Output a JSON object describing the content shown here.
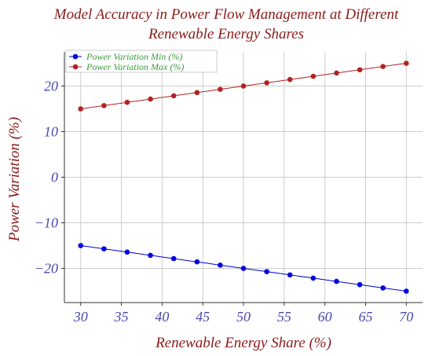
{
  "chart_data": {
    "type": "line",
    "title_lines": [
      "Model Accuracy in Power Flow Management at Different",
      "Renewable Energy Shares"
    ],
    "xlabel": "Renewable Energy Share (%)",
    "ylabel": "Power Variation (%)",
    "x": [
      30,
      32.86,
      35.71,
      38.57,
      41.43,
      44.29,
      47.14,
      50,
      52.86,
      55.71,
      58.57,
      61.43,
      64.29,
      67.14,
      70
    ],
    "series": [
      {
        "name": "Power Variation Min (%)",
        "color": "#0000dd",
        "values": [
          -15,
          -15.71,
          -16.43,
          -17.14,
          -17.86,
          -18.57,
          -19.29,
          -20,
          -20.71,
          -21.43,
          -22.14,
          -22.86,
          -23.57,
          -24.29,
          -25
        ]
      },
      {
        "name": "Power Variation Max (%)",
        "color": "#b22222",
        "values": [
          15,
          15.71,
          16.43,
          17.14,
          17.86,
          18.57,
          19.29,
          20,
          20.71,
          21.43,
          22.14,
          22.86,
          23.57,
          24.29,
          25
        ]
      }
    ],
    "xlim": [
      28,
      72
    ],
    "ylim": [
      -27.5,
      27.5
    ],
    "xticks": [
      30,
      35,
      40,
      45,
      50,
      55,
      60,
      65,
      70
    ],
    "yticks": [
      -20,
      -10,
      0,
      10,
      20
    ],
    "ytick_labels": [
      "−20",
      "−10",
      "0",
      "10",
      "20"
    ],
    "grid": true,
    "legend_position": "top-left",
    "colors": {
      "title": "#8b1a1a",
      "axis_label": "#8b1a1a",
      "tick_label": "#4848b0",
      "legend_text": "#3a9a3a",
      "grid": "#cccccc"
    }
  }
}
